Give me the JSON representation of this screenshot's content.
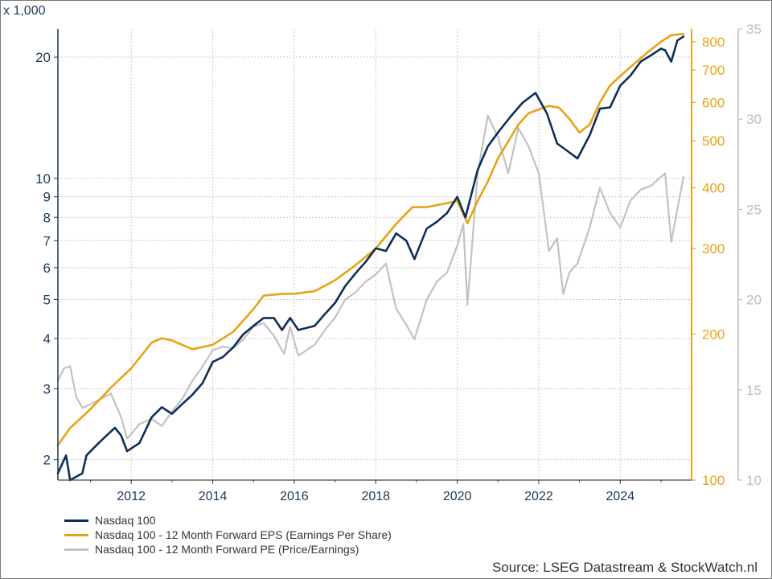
{
  "unit_label": "x 1,000",
  "source": "Source: LSEG Datastream & StockWatch.nl",
  "colors": {
    "nasdaq": "#0e2f56",
    "eps": "#e8a217",
    "pe": "#c2c2c2",
    "left_axis": "#1b3a5c",
    "eps_axis": "#e8a217",
    "pe_axis": "#bdbdbd",
    "grid": "#c8c8c8"
  },
  "legend": [
    {
      "label": "Nasdaq 100",
      "color": "#0e2f56"
    },
    {
      "label": "Nasdaq 100 - 12 Month Forward EPS (Earnings Per Share)",
      "color": "#e8a217"
    },
    {
      "label": "Nasdaq 100 - 12 Month Forward PE (Price/Earnings)",
      "color": "#c2c2c2"
    }
  ],
  "chart_data": {
    "type": "line",
    "x_range": [
      2010.2,
      2025.75
    ],
    "x_ticks": [
      2012,
      2014,
      2016,
      2018,
      2020,
      2022,
      2024
    ],
    "x_tick_labels": [
      "2012",
      "2014",
      "2016",
      "2018",
      "2020",
      "2022",
      "2024"
    ],
    "grid": true,
    "legend_position": "bottom-left",
    "axes": {
      "left": {
        "scale": "log",
        "range": [
          1.78,
          23.5
        ],
        "unit_label": "x 1,000",
        "ticks": [
          2,
          3,
          4,
          5,
          6,
          7,
          8,
          9,
          10,
          20
        ],
        "tick_labels": [
          "2",
          "3",
          "4",
          "5",
          "6",
          "7",
          "8",
          "9",
          "10",
          "20"
        ]
      },
      "right_eps": {
        "scale": "log",
        "range": [
          100,
          850
        ],
        "ticks": [
          100,
          200,
          300,
          400,
          500,
          600,
          700,
          800
        ],
        "tick_labels": [
          "100",
          "200",
          "300",
          "400",
          "500",
          "600",
          "700",
          "800"
        ]
      },
      "right_pe": {
        "scale": "linear",
        "range": [
          10,
          35
        ],
        "ticks": [
          10,
          15,
          20,
          25,
          30,
          35
        ],
        "tick_labels": [
          "10",
          "15",
          "20",
          "25",
          "30",
          "35"
        ]
      }
    },
    "series": [
      {
        "name": "Nasdaq 100",
        "axis": "left",
        "color": "#0e2f56",
        "points": [
          [
            2010.2,
            1.85
          ],
          [
            2010.4,
            2.05
          ],
          [
            2010.5,
            1.78
          ],
          [
            2010.8,
            1.85
          ],
          [
            2010.9,
            2.05
          ],
          [
            2011.2,
            2.2
          ],
          [
            2011.4,
            2.3
          ],
          [
            2011.6,
            2.4
          ],
          [
            2011.75,
            2.3
          ],
          [
            2011.9,
            2.1
          ],
          [
            2012.2,
            2.2
          ],
          [
            2012.5,
            2.55
          ],
          [
            2012.75,
            2.7
          ],
          [
            2013.0,
            2.6
          ],
          [
            2013.25,
            2.75
          ],
          [
            2013.5,
            2.9
          ],
          [
            2013.75,
            3.1
          ],
          [
            2014.0,
            3.5
          ],
          [
            2014.25,
            3.6
          ],
          [
            2014.5,
            3.8
          ],
          [
            2014.75,
            4.1
          ],
          [
            2015.0,
            4.3
          ],
          [
            2015.25,
            4.5
          ],
          [
            2015.5,
            4.5
          ],
          [
            2015.7,
            4.2
          ],
          [
            2015.9,
            4.5
          ],
          [
            2016.1,
            4.2
          ],
          [
            2016.5,
            4.3
          ],
          [
            2016.75,
            4.6
          ],
          [
            2017.0,
            4.9
          ],
          [
            2017.25,
            5.4
          ],
          [
            2017.5,
            5.8
          ],
          [
            2017.75,
            6.2
          ],
          [
            2018.0,
            6.7
          ],
          [
            2018.25,
            6.6
          ],
          [
            2018.5,
            7.3
          ],
          [
            2018.75,
            7.0
          ],
          [
            2018.95,
            6.3
          ],
          [
            2019.25,
            7.5
          ],
          [
            2019.5,
            7.8
          ],
          [
            2019.75,
            8.2
          ],
          [
            2020.0,
            9.0
          ],
          [
            2020.2,
            8.0
          ],
          [
            2020.5,
            10.5
          ],
          [
            2020.75,
            12.0
          ],
          [
            2021.0,
            13.0
          ],
          [
            2021.3,
            14.2
          ],
          [
            2021.6,
            15.4
          ],
          [
            2021.92,
            16.3
          ],
          [
            2022.2,
            14.5
          ],
          [
            2022.45,
            12.2
          ],
          [
            2022.75,
            11.6
          ],
          [
            2022.95,
            11.2
          ],
          [
            2023.25,
            12.8
          ],
          [
            2023.5,
            14.9
          ],
          [
            2023.75,
            15.0
          ],
          [
            2024.0,
            17.0
          ],
          [
            2024.25,
            18.0
          ],
          [
            2024.5,
            19.5
          ],
          [
            2024.75,
            20.2
          ],
          [
            2025.0,
            21.0
          ],
          [
            2025.1,
            20.8
          ],
          [
            2025.25,
            19.5
          ],
          [
            2025.4,
            22.0
          ],
          [
            2025.55,
            22.5
          ]
        ]
      },
      {
        "name": "Nasdaq 100 - 12 Month Forward EPS (Earnings Per Share)",
        "axis": "right_eps",
        "color": "#e8a217",
        "points": [
          [
            2010.2,
            118
          ],
          [
            2010.5,
            128
          ],
          [
            2011.0,
            140
          ],
          [
            2011.5,
            155
          ],
          [
            2012.0,
            170
          ],
          [
            2012.5,
            192
          ],
          [
            2012.75,
            196
          ],
          [
            2013.0,
            194
          ],
          [
            2013.5,
            186
          ],
          [
            2014.0,
            190
          ],
          [
            2014.5,
            202
          ],
          [
            2015.0,
            225
          ],
          [
            2015.25,
            240
          ],
          [
            2015.5,
            241
          ],
          [
            2015.75,
            242
          ],
          [
            2016.0,
            242
          ],
          [
            2016.5,
            245
          ],
          [
            2017.0,
            258
          ],
          [
            2017.5,
            277
          ],
          [
            2018.0,
            300
          ],
          [
            2018.5,
            337
          ],
          [
            2018.9,
            365
          ],
          [
            2019.25,
            365
          ],
          [
            2019.75,
            372
          ],
          [
            2020.0,
            376
          ],
          [
            2020.25,
            338
          ],
          [
            2020.5,
            376
          ],
          [
            2020.75,
            412
          ],
          [
            2021.0,
            460
          ],
          [
            2021.5,
            540
          ],
          [
            2021.75,
            570
          ],
          [
            2022.0,
            580
          ],
          [
            2022.25,
            590
          ],
          [
            2022.5,
            585
          ],
          [
            2022.75,
            555
          ],
          [
            2023.0,
            520
          ],
          [
            2023.25,
            540
          ],
          [
            2023.5,
            600
          ],
          [
            2023.75,
            650
          ],
          [
            2024.0,
            680
          ],
          [
            2024.5,
            740
          ],
          [
            2024.75,
            770
          ],
          [
            2025.0,
            800
          ],
          [
            2025.25,
            825
          ],
          [
            2025.55,
            830
          ]
        ]
      },
      {
        "name": "Nasdaq 100 - 12 Month Forward PE (Price/Earnings)",
        "axis": "right_pe",
        "color": "#c2c2c2",
        "points": [
          [
            2010.2,
            15.5
          ],
          [
            2010.35,
            16.2
          ],
          [
            2010.5,
            16.3
          ],
          [
            2010.65,
            14.6
          ],
          [
            2010.8,
            14.0
          ],
          [
            2011.0,
            14.2
          ],
          [
            2011.25,
            14.5
          ],
          [
            2011.5,
            14.8
          ],
          [
            2011.75,
            13.5
          ],
          [
            2011.9,
            12.3
          ],
          [
            2012.2,
            13.1
          ],
          [
            2012.5,
            13.4
          ],
          [
            2012.75,
            13.0
          ],
          [
            2013.0,
            13.8
          ],
          [
            2013.25,
            14.5
          ],
          [
            2013.5,
            15.5
          ],
          [
            2013.75,
            16.3
          ],
          [
            2014.0,
            17.2
          ],
          [
            2014.25,
            17.4
          ],
          [
            2014.5,
            17.3
          ],
          [
            2014.75,
            17.8
          ],
          [
            2015.0,
            18.5
          ],
          [
            2015.25,
            18.7
          ],
          [
            2015.5,
            18.0
          ],
          [
            2015.75,
            17.0
          ],
          [
            2015.9,
            18.5
          ],
          [
            2016.1,
            16.9
          ],
          [
            2016.5,
            17.5
          ],
          [
            2016.75,
            18.3
          ],
          [
            2017.0,
            19.0
          ],
          [
            2017.25,
            20.0
          ],
          [
            2017.5,
            20.4
          ],
          [
            2017.75,
            21.0
          ],
          [
            2018.0,
            21.4
          ],
          [
            2018.25,
            22.0
          ],
          [
            2018.5,
            19.5
          ],
          [
            2018.75,
            18.6
          ],
          [
            2018.95,
            17.8
          ],
          [
            2019.25,
            20.0
          ],
          [
            2019.5,
            21.0
          ],
          [
            2019.75,
            21.5
          ],
          [
            2020.0,
            23.0
          ],
          [
            2020.15,
            24.2
          ],
          [
            2020.25,
            19.7
          ],
          [
            2020.5,
            27.0
          ],
          [
            2020.75,
            30.2
          ],
          [
            2021.0,
            29.0
          ],
          [
            2021.25,
            27.0
          ],
          [
            2021.5,
            29.5
          ],
          [
            2021.75,
            28.5
          ],
          [
            2022.0,
            27.0
          ],
          [
            2022.25,
            22.7
          ],
          [
            2022.45,
            23.4
          ],
          [
            2022.6,
            20.3
          ],
          [
            2022.75,
            21.5
          ],
          [
            2022.95,
            22.0
          ],
          [
            2023.25,
            24.0
          ],
          [
            2023.5,
            26.2
          ],
          [
            2023.75,
            24.8
          ],
          [
            2024.0,
            24.0
          ],
          [
            2024.25,
            25.5
          ],
          [
            2024.5,
            26.1
          ],
          [
            2024.75,
            26.3
          ],
          [
            2025.0,
            26.8
          ],
          [
            2025.1,
            27.0
          ],
          [
            2025.25,
            23.2
          ],
          [
            2025.4,
            25.0
          ],
          [
            2025.55,
            26.8
          ]
        ]
      }
    ]
  }
}
